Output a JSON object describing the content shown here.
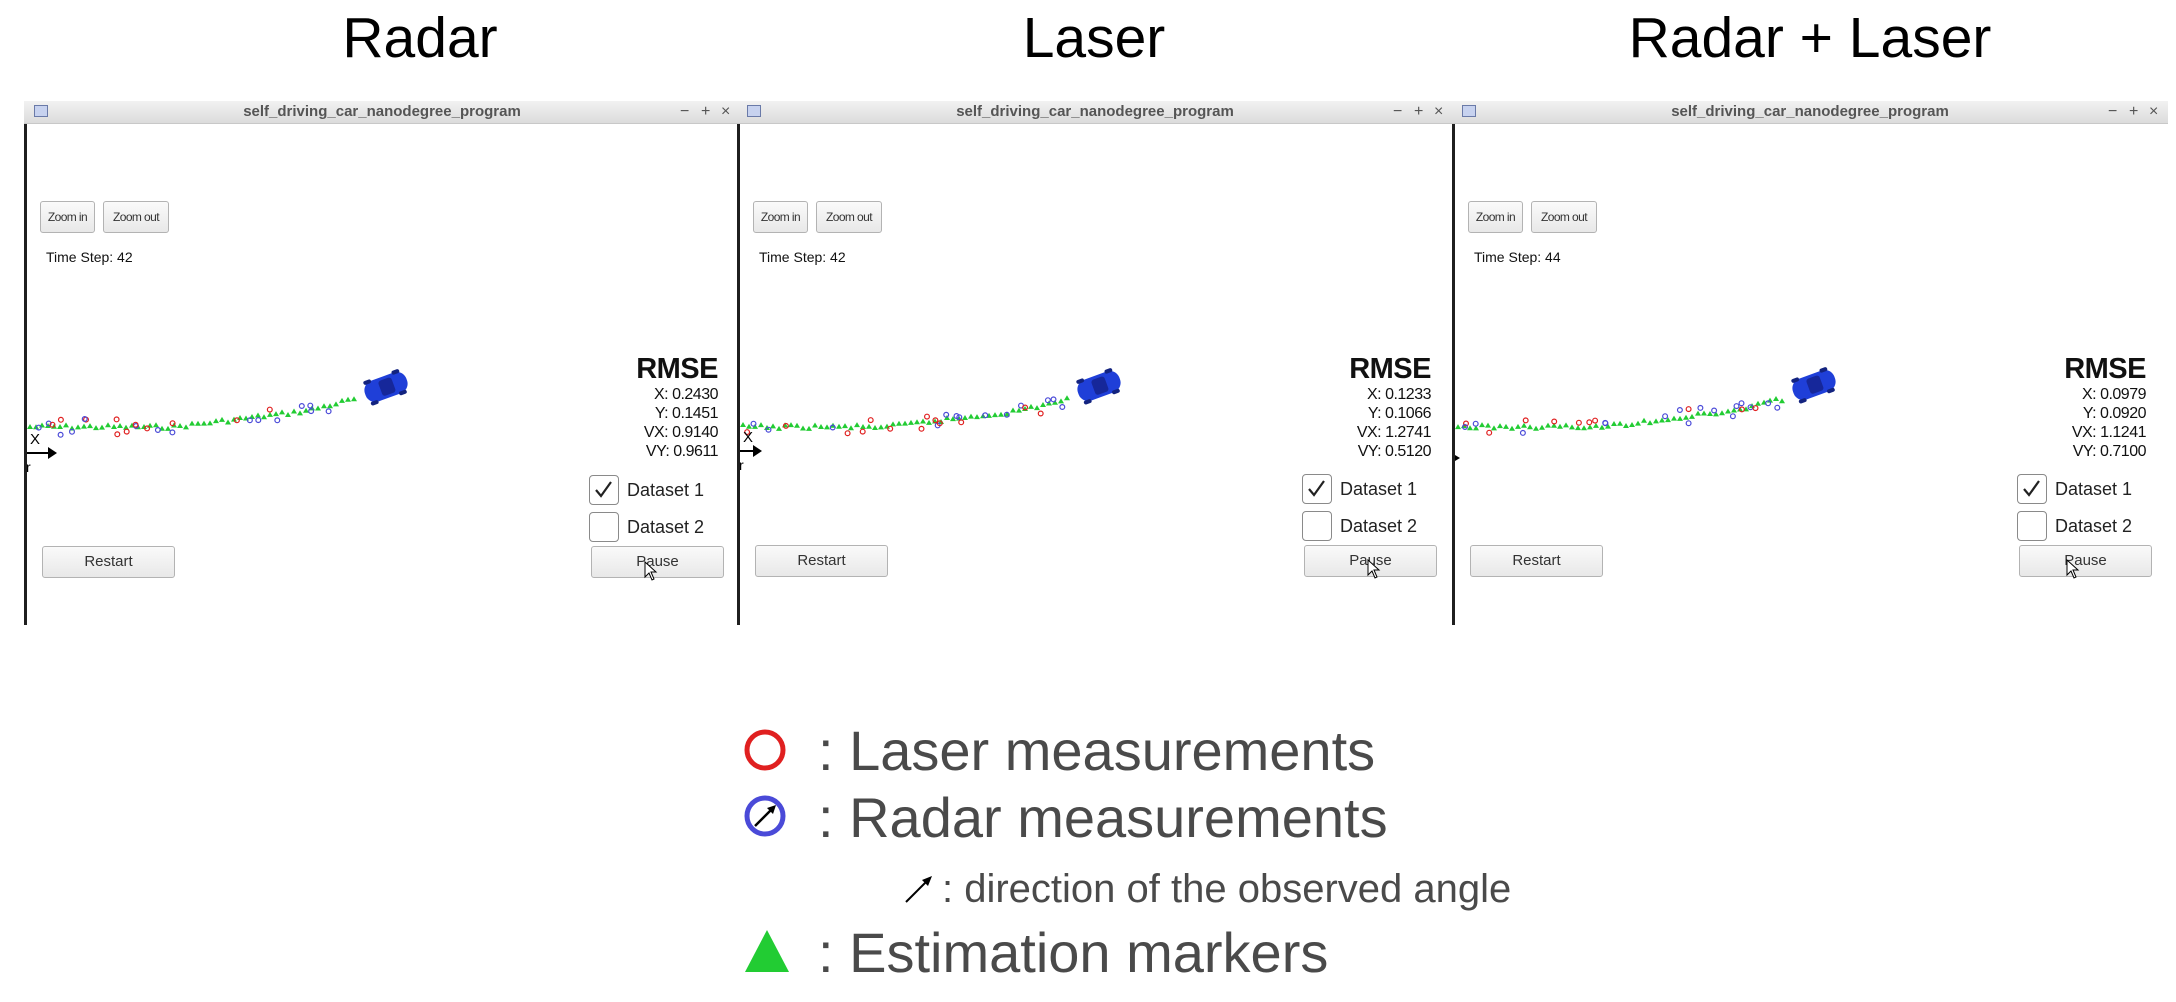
{
  "panels": [
    {
      "heading": "Radar",
      "window_title": "self_driving_car_nanodegree_program",
      "window_controls": [
        "−",
        "+",
        "×"
      ],
      "zoom_in": "Zoom in",
      "zoom_out": "Zoom out",
      "time_step": "Time Step: 42",
      "rmse": {
        "title": "RMSE",
        "x": "X: 0.2430",
        "y": "Y: 0.1451",
        "vx": "VX: 0.9140",
        "vy": "VY: 0.9611"
      },
      "dataset1": {
        "label": "Dataset 1",
        "checked": true
      },
      "dataset2": {
        "label": "Dataset 2",
        "checked": false
      },
      "restart": "Restart",
      "pause": "Pause",
      "axis_label": "X",
      "axis_sub": "r"
    },
    {
      "heading": "Laser",
      "window_title": "self_driving_car_nanodegree_program",
      "window_controls": [
        "−",
        "+",
        "×"
      ],
      "zoom_in": "Zoom in",
      "zoom_out": "Zoom out",
      "time_step": "Time Step: 42",
      "rmse": {
        "title": "RMSE",
        "x": "X: 0.1233",
        "y": "Y: 0.1066",
        "vx": "VX: 1.2741",
        "vy": "VY: 0.5120"
      },
      "dataset1": {
        "label": "Dataset 1",
        "checked": true
      },
      "dataset2": {
        "label": "Dataset 2",
        "checked": false
      },
      "restart": "Restart",
      "pause": "Pause",
      "axis_label": "X",
      "axis_sub": "r"
    },
    {
      "heading": "Radar + Laser",
      "window_title": "self_driving_car_nanodegree_program",
      "window_controls": [
        "−",
        "+",
        "×"
      ],
      "zoom_in": "Zoom in",
      "zoom_out": "Zoom out",
      "time_step": "Time Step: 44",
      "rmse": {
        "title": "RMSE",
        "x": "X: 0.0979",
        "y": "Y: 0.0920",
        "vx": "VX: 1.1241",
        "vy": "VY: 0.7100"
      },
      "dataset1": {
        "label": "Dataset 1",
        "checked": true
      },
      "dataset2": {
        "label": "Dataset 2",
        "checked": false
      },
      "restart": "Restart",
      "pause": "Pause"
    }
  ],
  "legend": {
    "laser": ": Laser measurements",
    "radar": ": Radar measurements",
    "angle": ": direction of the observed angle",
    "estimation": ": Estimation markers"
  },
  "colors": {
    "laser": "#e02020",
    "radar": "#4a4ad8",
    "estimation": "#22cc33",
    "car": "#1f3fd8"
  }
}
